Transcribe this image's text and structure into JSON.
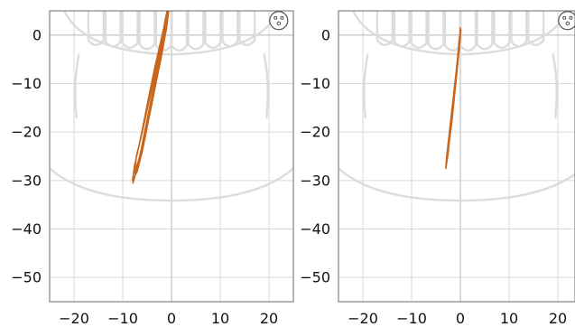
{
  "chart_data": [
    {
      "type": "line",
      "title": "",
      "xlabel": "",
      "ylabel": "",
      "xlim": [
        -25,
        25
      ],
      "ylim": [
        -55,
        5
      ],
      "xticks": [
        -20,
        -10,
        0,
        10,
        20
      ],
      "yticks": [
        0,
        -10,
        -20,
        -30,
        -40,
        -50
      ],
      "xtick_labels": [
        "−20",
        "−10",
        "0",
        "10",
        "20"
      ],
      "ytick_labels": [
        "0",
        "−10",
        "−20",
        "−30",
        "−40",
        "−50"
      ],
      "grid": true,
      "series": [
        {
          "color": "#c8651b",
          "x": [
            -0.8,
            -1.3,
            -2.0,
            -3.0,
            -4.0,
            -5.0,
            -6.0,
            -7.0,
            -8.0,
            -7.6,
            -6.5,
            -5.5,
            -4.5,
            -3.5,
            -2.6,
            -1.8,
            -1.1,
            -0.6,
            -1.0,
            -1.8,
            -2.8,
            -3.8,
            -4.8,
            -5.8,
            -6.8,
            -7.6,
            -7.2,
            -6.0,
            -4.9,
            -3.8,
            -2.8,
            -2.0,
            -1.4,
            -0.9,
            -1.5,
            -2.4,
            -3.4,
            -4.4,
            -5.4,
            -6.3,
            -7.2,
            -7.9
          ],
          "y": [
            5.0,
            0.0,
            -4.0,
            -9.0,
            -14.0,
            -19.0,
            -24.0,
            -28.0,
            -30.0,
            -27.0,
            -22.0,
            -17.0,
            -12.0,
            -7.0,
            -3.0,
            0.5,
            3.5,
            5.0,
            1.5,
            -2.5,
            -7.0,
            -12.0,
            -17.0,
            -22.0,
            -26.0,
            -28.5,
            -25.0,
            -20.0,
            -15.0,
            -10.0,
            -5.0,
            -1.0,
            2.5,
            5.0,
            0.0,
            -4.5,
            -9.5,
            -14.5,
            -19.5,
            -24.0,
            -28.0,
            -30.5
          ]
        }
      ]
    },
    {
      "type": "line",
      "title": "",
      "xlabel": "",
      "ylabel": "",
      "xlim": [
        -25,
        25
      ],
      "ylim": [
        -55,
        5
      ],
      "xticks": [
        -20,
        -10,
        0,
        10,
        20
      ],
      "yticks": [
        0,
        -10,
        -20,
        -30,
        -40,
        -50
      ],
      "xtick_labels": [
        "−20",
        "−10",
        "0",
        "10",
        "20"
      ],
      "ytick_labels": [
        "0",
        "−10",
        "−20",
        "−30",
        "−40",
        "−50"
      ],
      "grid": true,
      "series": [
        {
          "color": "#c8651b",
          "x": [
            0.0,
            -0.3,
            -0.8,
            -1.3,
            -1.8,
            -2.3,
            -2.7,
            -3.0,
            -2.8,
            -2.3,
            -1.8,
            -1.3,
            -0.8,
            -0.4,
            -0.1,
            0.1,
            -0.2,
            -0.7,
            -1.2,
            -1.7,
            -2.2,
            -2.6,
            -2.9,
            -2.6,
            -2.0,
            -1.4,
            -0.9,
            -0.5,
            -0.2
          ],
          "y": [
            1.5,
            -3.0,
            -8.0,
            -13.0,
            -18.0,
            -22.0,
            -25.5,
            -27.5,
            -25.0,
            -20.5,
            -16.0,
            -11.5,
            -7.0,
            -3.0,
            0.0,
            1.0,
            -2.5,
            -7.5,
            -12.5,
            -17.5,
            -21.5,
            -25.0,
            -27.0,
            -23.5,
            -18.5,
            -13.5,
            -8.5,
            -4.0,
            -0.5
          ]
        }
      ]
    }
  ],
  "overlay": {
    "jaw_color": "#dcdcdc",
    "face_icon": "face-icon"
  }
}
